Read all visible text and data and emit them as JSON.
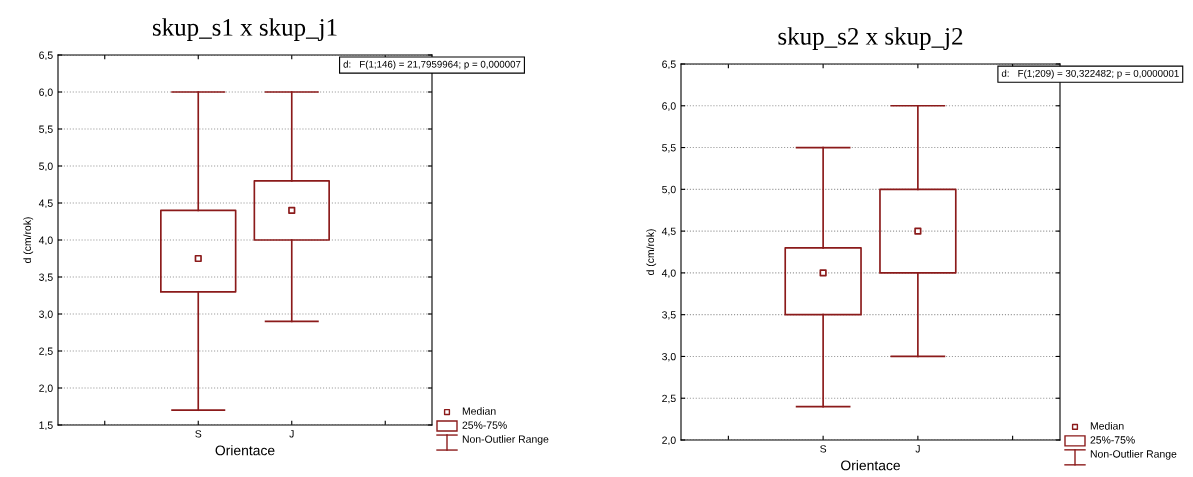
{
  "chart_data": [
    {
      "type": "box",
      "title": "skup_s1 x skup_j1",
      "xlabel": "Orientace",
      "ylabel": "d (cm/rok)",
      "categories": [
        "S",
        "J"
      ],
      "color": "#8b1a1a",
      "boxes": [
        {
          "low": 1.7,
          "q1": 3.3,
          "median": 3.75,
          "q3": 4.4,
          "high": 6.0
        },
        {
          "low": 2.9,
          "q1": 4.0,
          "median": 4.4,
          "q3": 4.8,
          "high": 6.0
        }
      ],
      "ylim": [
        1.5,
        6.5
      ],
      "yticks": [
        {
          "value": 1.5,
          "label": "1,5"
        },
        {
          "value": 2.0,
          "label": "2,0"
        },
        {
          "value": 2.5,
          "label": "2,5"
        },
        {
          "value": 3.0,
          "label": "3,0"
        },
        {
          "value": 3.5,
          "label": "3,5"
        },
        {
          "value": 4.0,
          "label": "4,0"
        },
        {
          "value": 4.5,
          "label": "4,5"
        },
        {
          "value": 5.0,
          "label": "5,0"
        },
        {
          "value": 5.5,
          "label": "5,5"
        },
        {
          "value": 6.0,
          "label": "6,0"
        },
        {
          "value": 6.5,
          "label": "6,5"
        }
      ],
      "grid": "y",
      "annotations": [
        "d:   F(1;146) = 21,7959964; p = 0,000007",
        "Median",
        "25%-75%",
        "Non-Outlier Range"
      ]
    },
    {
      "type": "box",
      "title": "skup_s2 x skup_j2",
      "xlabel": "Orientace",
      "ylabel": "d (cm/rok)",
      "categories": [
        "S",
        "J"
      ],
      "color": "#8b1a1a",
      "boxes": [
        {
          "low": 2.4,
          "q1": 3.5,
          "median": 4.0,
          "q3": 4.3,
          "high": 5.5
        },
        {
          "low": 3.0,
          "q1": 4.0,
          "median": 4.5,
          "q3": 5.0,
          "high": 6.0
        }
      ],
      "ylim": [
        2.0,
        6.5
      ],
      "yticks": [
        {
          "value": 2.0,
          "label": "2,0"
        },
        {
          "value": 2.5,
          "label": "2,5"
        },
        {
          "value": 3.0,
          "label": "3,0"
        },
        {
          "value": 3.5,
          "label": "3,5"
        },
        {
          "value": 4.0,
          "label": "4,0"
        },
        {
          "value": 4.5,
          "label": "4,5"
        },
        {
          "value": 5.0,
          "label": "5,0"
        },
        {
          "value": 5.5,
          "label": "5,5"
        },
        {
          "value": 6.0,
          "label": "6,0"
        },
        {
          "value": 6.5,
          "label": "6,5"
        }
      ],
      "grid": "y",
      "annotations": [
        "d:   F(1;209) = 30,322482; p = 0,0000001",
        "Median",
        "25%-75%",
        "Non-Outlier Range"
      ]
    }
  ]
}
